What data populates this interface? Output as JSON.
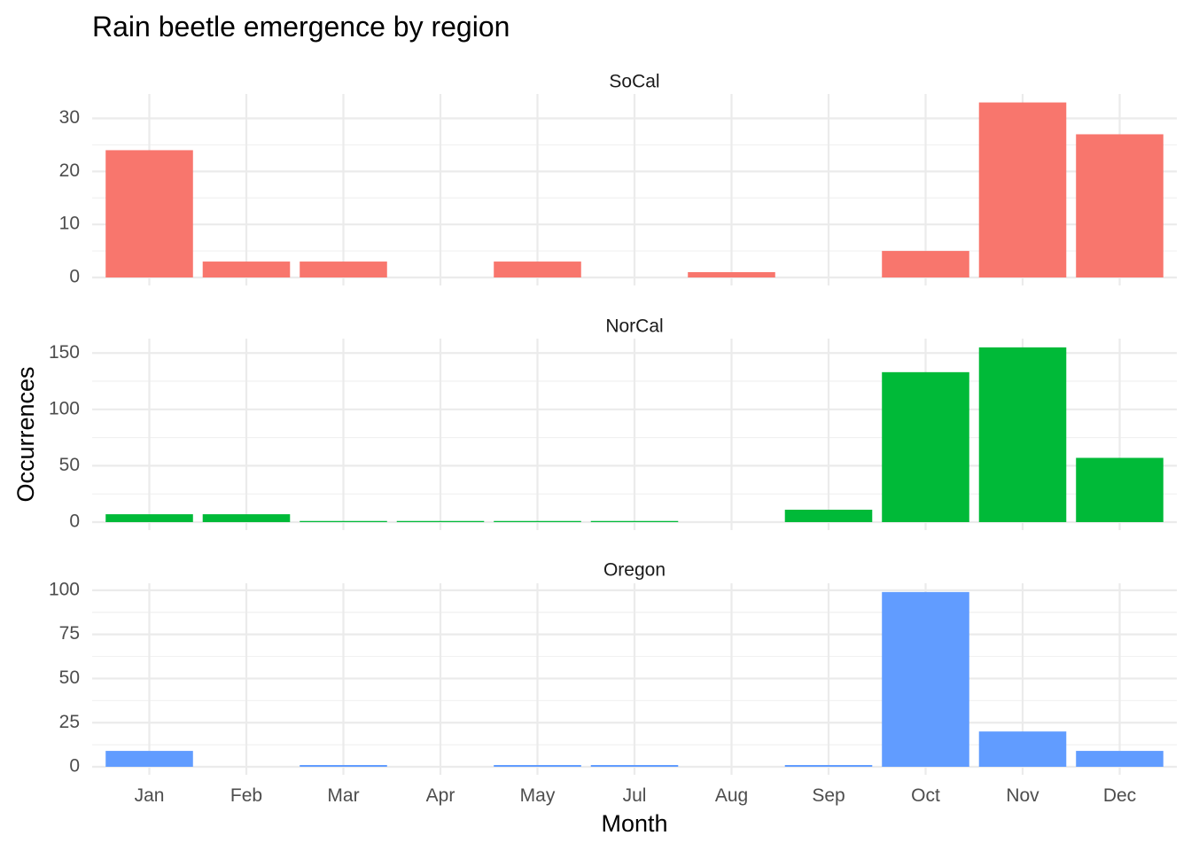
{
  "chart_data": {
    "type": "bar",
    "title": "Rain beetle emergence by region",
    "xlabel": "Month",
    "ylabel": "Occurrences",
    "categories": [
      "Jan",
      "Feb",
      "Mar",
      "Apr",
      "May",
      "Jul",
      "Aug",
      "Sep",
      "Oct",
      "Nov",
      "Dec"
    ],
    "grid": true,
    "legend": "none",
    "facets": [
      {
        "name": "SoCal",
        "color": "#F8766D",
        "values": [
          24,
          3,
          3,
          0,
          3,
          0,
          1,
          0,
          5,
          33,
          27
        ],
        "ylim": [
          0,
          34.6
        ],
        "yticks": [
          0,
          10,
          20,
          30
        ]
      },
      {
        "name": "NorCal",
        "color": "#00BA38",
        "values": [
          7,
          7,
          1,
          1,
          1,
          1,
          0,
          11,
          133,
          155,
          57
        ],
        "ylim": [
          0,
          162.75
        ],
        "yticks": [
          0,
          50,
          100,
          150
        ]
      },
      {
        "name": "Oregon",
        "color": "#619CFF",
        "values": [
          9,
          0,
          1,
          0,
          1,
          1,
          0,
          1,
          99,
          20,
          9
        ],
        "ylim": [
          0,
          103.95
        ],
        "yticks": [
          0,
          25,
          50,
          75,
          100
        ]
      }
    ]
  }
}
